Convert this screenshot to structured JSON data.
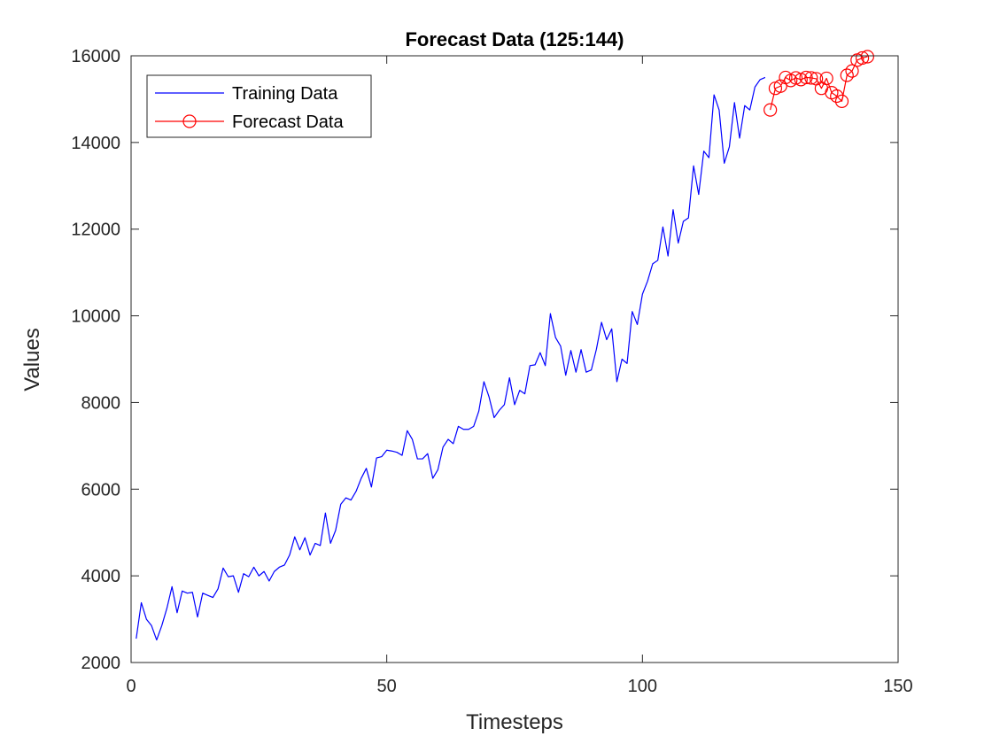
{
  "chart_data": {
    "type": "line",
    "title": "Forecast Data (125:144)",
    "xlabel": "Timesteps",
    "ylabel": "Values",
    "xlim": [
      0,
      150
    ],
    "ylim": [
      2000,
      16000
    ],
    "xticks": [
      0,
      50,
      100,
      150
    ],
    "yticks": [
      2000,
      4000,
      6000,
      8000,
      10000,
      12000,
      14000,
      16000
    ],
    "xtick_labels": [
      "0",
      "50",
      "100",
      "150"
    ],
    "ytick_labels": [
      "2000",
      "4000",
      "6000",
      "8000",
      "10000",
      "12000",
      "14000",
      "16000"
    ],
    "grid": false,
    "legend_position": "top-left",
    "series": [
      {
        "name": "Training Data",
        "color": "#0000ff",
        "marker": "none",
        "x": [
          1,
          2,
          3,
          4,
          5,
          6,
          7,
          8,
          9,
          10,
          11,
          12,
          13,
          14,
          15,
          16,
          17,
          18,
          19,
          20,
          21,
          22,
          23,
          24,
          25,
          26,
          27,
          28,
          29,
          30,
          31,
          32,
          33,
          34,
          35,
          36,
          37,
          38,
          39,
          40,
          41,
          42,
          43,
          44,
          45,
          46,
          47,
          48,
          49,
          50,
          51,
          52,
          53,
          54,
          55,
          56,
          57,
          58,
          59,
          60,
          61,
          62,
          63,
          64,
          65,
          66,
          67,
          68,
          69,
          70,
          71,
          72,
          73,
          74,
          75,
          76,
          77,
          78,
          79,
          80,
          81,
          82,
          83,
          84,
          85,
          86,
          87,
          88,
          89,
          90,
          91,
          92,
          93,
          94,
          95,
          96,
          97,
          98,
          99,
          100,
          101,
          102,
          103,
          104,
          105,
          106,
          107,
          108,
          109,
          110,
          111,
          112,
          113,
          114,
          115,
          116,
          117,
          118,
          119,
          120,
          121,
          122,
          123,
          124
        ],
        "values": [
          2550,
          3380,
          3000,
          2850,
          2520,
          2850,
          3250,
          3750,
          3150,
          3650,
          3600,
          3620,
          3050,
          3600,
          3550,
          3500,
          3700,
          4180,
          3980,
          4000,
          3620,
          4050,
          3980,
          4200,
          4000,
          4100,
          3880,
          4100,
          4200,
          4250,
          4480,
          4900,
          4600,
          4880,
          4480,
          4750,
          4700,
          5450,
          4750,
          5050,
          5650,
          5800,
          5750,
          5950,
          6250,
          6480,
          6050,
          6720,
          6750,
          6900,
          6880,
          6850,
          6780,
          7350,
          7150,
          6700,
          6700,
          6820,
          6250,
          6450,
          6970,
          7150,
          7050,
          7450,
          7380,
          7380,
          7450,
          7800,
          8480,
          8130,
          7650,
          7820,
          7950,
          8570,
          7950,
          8280,
          8200,
          8850,
          8870,
          9150,
          8850,
          10050,
          9500,
          9300,
          8630,
          9200,
          8700,
          9220,
          8700,
          8750,
          9230,
          9850,
          9450,
          9700,
          8480,
          9000,
          8900,
          10100,
          9800,
          10500,
          10800,
          11200,
          11280,
          12050,
          11380,
          12450,
          11680,
          12180,
          12260,
          13460,
          12800,
          13800,
          13650,
          15100,
          14750,
          13520,
          13900,
          14920,
          14100,
          14850,
          14750,
          15280,
          15450,
          15500
        ]
      },
      {
        "name": "Forecast Data",
        "color": "#ff0000",
        "marker": "circle",
        "x": [
          125,
          126,
          127,
          128,
          129,
          130,
          131,
          132,
          133,
          134,
          135,
          136,
          137,
          138,
          139,
          140,
          141,
          142,
          143,
          144
        ],
        "values": [
          14750,
          15250,
          15300,
          15500,
          15430,
          15490,
          15450,
          15500,
          15490,
          15470,
          15250,
          15480,
          15150,
          15070,
          14950,
          15550,
          15650,
          15900,
          15950,
          15980
        ]
      }
    ]
  }
}
